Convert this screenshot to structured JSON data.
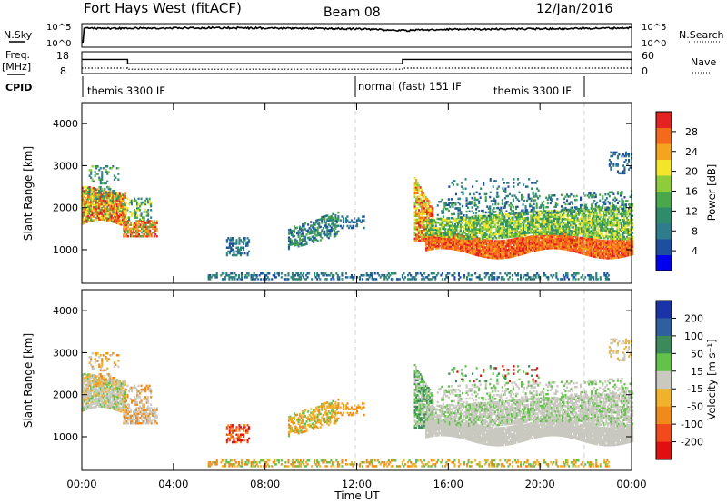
{
  "header": {
    "station": "Fort Hays West (fitACF)",
    "beam": "Beam 08",
    "date": "12/Jan/2016"
  },
  "left_labels": {
    "nsky": "N.Sky",
    "freq": "Freq.",
    "freq_unit": "[MHz]",
    "cpid": "CPID"
  },
  "right_labels": {
    "nsearch": "N.Search",
    "nave": "Nave"
  },
  "cpid_segments": [
    {
      "label": "themis 3300 IF"
    },
    {
      "label": "normal (fast) 151 IF"
    },
    {
      "label": "themis 3300 IF"
    }
  ],
  "chart_data": [
    {
      "type": "line",
      "name": "noise",
      "ylabel_left": "N.Sky",
      "ylabel_right": "N.Search",
      "yticks_left": [
        "10^5",
        "10^0"
      ],
      "yticks_right": [
        "10^5",
        "10^0"
      ],
      "xlim": [
        0,
        24
      ],
      "nsky_approx": {
        "x": [
          0.05,
          0.1,
          6,
          12,
          14,
          16,
          20,
          24
        ],
        "level": [
          0.2,
          0.82,
          0.85,
          0.8,
          0.72,
          0.78,
          0.8,
          0.85
        ]
      }
    },
    {
      "type": "line",
      "name": "frequency",
      "ylabel_left": "Freq. [MHz]",
      "ylabel_right": "Nave",
      "yticks_left": [
        "18",
        "8"
      ],
      "yticks_right": [
        "60",
        "0"
      ],
      "freq": {
        "x": [
          0,
          2,
          2,
          14,
          14,
          24
        ],
        "y": [
          14.5,
          14.5,
          12.5,
          12.5,
          14.5,
          14.5
        ]
      },
      "nave": {
        "x": [
          0,
          2,
          2,
          14,
          14,
          24
        ],
        "y": [
          15,
          15,
          12,
          12,
          15,
          15
        ]
      }
    },
    {
      "type": "heatmap",
      "name": "power",
      "ylabel": "Slant Range [km]",
      "xlim": [
        0,
        24
      ],
      "ylim": [
        200,
        4500
      ],
      "yticks": [
        "1000",
        "2000",
        "3000",
        "4000"
      ],
      "colorbar_label": "Power [dB]",
      "colorbar_ticks": [
        "4",
        "8",
        "12",
        "16",
        "20",
        "24",
        "28"
      ],
      "colorbar_range": [
        0,
        32
      ],
      "colors": [
        "#0000ee",
        "#1d4fa0",
        "#2e7d8c",
        "#2f8c6a",
        "#49a84a",
        "#8fcc3a",
        "#f2e52a",
        "#f5a41f",
        "#f26a1a",
        "#e52222"
      ]
    },
    {
      "type": "heatmap",
      "name": "velocity",
      "ylabel": "Slant Range [km]",
      "xlim": [
        0,
        24
      ],
      "ylim": [
        200,
        4500
      ],
      "yticks": [
        "1000",
        "2000",
        "3000",
        "4000"
      ],
      "colorbar_label": "Velocity [m s⁻¹]",
      "colorbar_ticks": [
        "200",
        "100",
        "50",
        "15",
        "-15",
        "-50",
        "-100",
        "-200"
      ],
      "colors": [
        "#1a33a8",
        "#2e5fa0",
        "#3a8a5a",
        "#63c24a",
        "#c9c9c0",
        "#f2b12a",
        "#f28a1a",
        "#f24a1a",
        "#e11010"
      ]
    }
  ],
  "time_axis": {
    "xlabel": "Time UT",
    "ticks": [
      "00:00",
      "04:00",
      "08:00",
      "12:00",
      "16:00",
      "20:00",
      "00:00"
    ],
    "tick_hours": [
      0,
      4,
      8,
      12,
      16,
      20,
      24
    ]
  }
}
